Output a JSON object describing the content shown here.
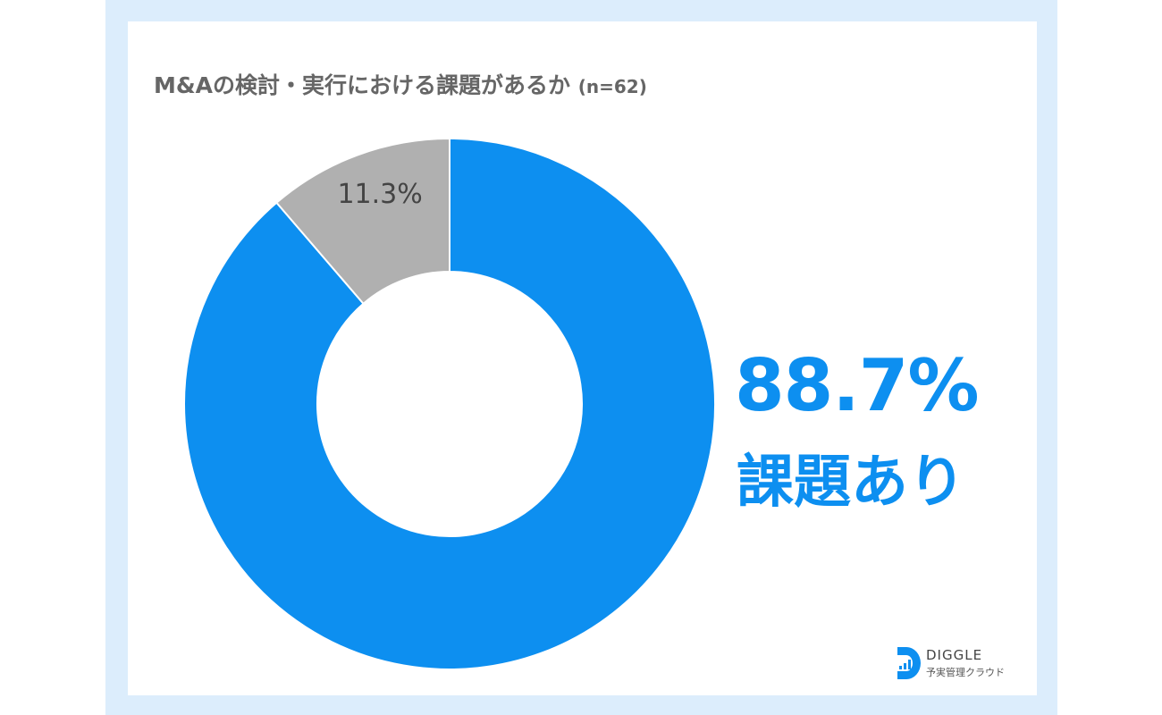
{
  "title": "M&Aの検討・実行における課題があるか",
  "title_n": "(n=62)",
  "chart_data": {
    "type": "pie",
    "donut": true,
    "title": "M&Aの検討・実行における課題があるか (n=62)",
    "slices": [
      {
        "label": "課題あり",
        "value": 88.7,
        "display": "88.7%",
        "color": "#0d8ff0"
      },
      {
        "label": "",
        "value": 11.3,
        "display": "11.3%",
        "color": "#b0b0b0"
      }
    ],
    "legend": "none"
  },
  "highlight": {
    "value": "88.7%",
    "label": "課題あり"
  },
  "logo": {
    "name": "DIGGLE",
    "sub": "予実管理クラウド",
    "color": "#0d8ff0"
  }
}
